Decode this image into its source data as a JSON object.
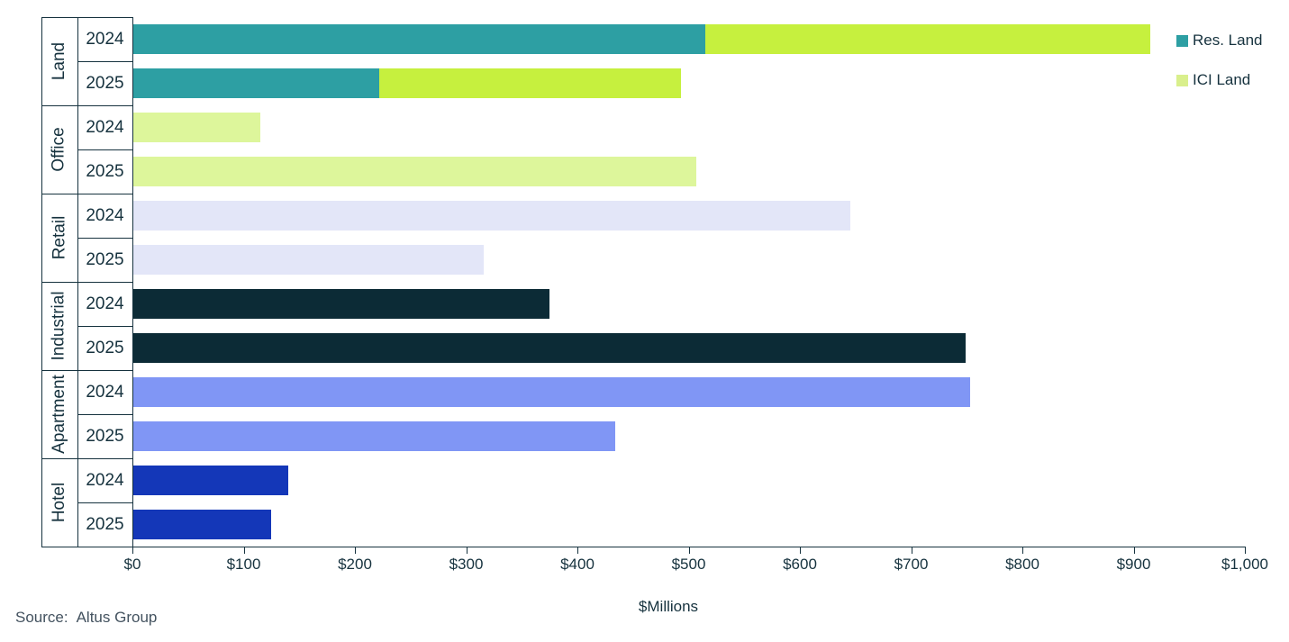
{
  "chart_data": {
    "type": "bar",
    "orientation": "horizontal",
    "title": "",
    "xlabel": "$Millions",
    "ylabel": "",
    "xlim": [
      0,
      1000
    ],
    "grid": false,
    "x_tick_values": [
      0,
      100,
      200,
      300,
      400,
      500,
      600,
      700,
      800,
      900,
      1000
    ],
    "x_ticks": [
      "$0",
      "$100",
      "$200",
      "$300",
      "$400",
      "$500",
      "$600",
      "$700",
      "$800",
      "$900",
      "$1,000"
    ],
    "legend_position": "top-right",
    "legend": [
      {
        "label": "Res. Land",
        "color": "#2D9FA3"
      },
      {
        "label": "ICI Land",
        "color": "#D9EF8C"
      }
    ],
    "groups": [
      "Land",
      "Office",
      "Retail",
      "Industrial",
      "Apartment",
      "Hotel"
    ],
    "rows": [
      {
        "group": "Land",
        "year": "2024",
        "total": 915,
        "segments": [
          {
            "name": "Res. Land",
            "value": 515,
            "color": "#2D9FA3"
          },
          {
            "name": "ICI Land",
            "value": 400,
            "color": "#C6F03E"
          }
        ]
      },
      {
        "group": "Land",
        "year": "2025",
        "total": 493,
        "segments": [
          {
            "name": "Res. Land",
            "value": 222,
            "color": "#2D9FA3"
          },
          {
            "name": "ICI Land",
            "value": 271,
            "color": "#C6F03E"
          }
        ]
      },
      {
        "group": "Office",
        "year": "2024",
        "total": 115,
        "segments": [
          {
            "name": "Office",
            "value": 115,
            "color": "#DDF69B"
          }
        ]
      },
      {
        "group": "Office",
        "year": "2025",
        "total": 507,
        "segments": [
          {
            "name": "Office",
            "value": 507,
            "color": "#DDF69B"
          }
        ]
      },
      {
        "group": "Retail",
        "year": "2024",
        "total": 645,
        "segments": [
          {
            "name": "Retail",
            "value": 645,
            "color": "#E3E6F8"
          }
        ]
      },
      {
        "group": "Retail",
        "year": "2025",
        "total": 316,
        "segments": [
          {
            "name": "Retail",
            "value": 316,
            "color": "#E3E6F8"
          }
        ]
      },
      {
        "group": "Industrial",
        "year": "2024",
        "total": 375,
        "segments": [
          {
            "name": "Industrial",
            "value": 375,
            "color": "#0C2B36"
          }
        ]
      },
      {
        "group": "Industrial",
        "year": "2025",
        "total": 749,
        "segments": [
          {
            "name": "Industrial",
            "value": 749,
            "color": "#0C2B36"
          }
        ]
      },
      {
        "group": "Apartment",
        "year": "2024",
        "total": 753,
        "segments": [
          {
            "name": "Apartment",
            "value": 753,
            "color": "#8096F5"
          }
        ]
      },
      {
        "group": "Apartment",
        "year": "2025",
        "total": 434,
        "segments": [
          {
            "name": "Apartment",
            "value": 434,
            "color": "#8096F5"
          }
        ]
      },
      {
        "group": "Hotel",
        "year": "2024",
        "total": 140,
        "segments": [
          {
            "name": "Hotel",
            "value": 140,
            "color": "#1437B8"
          }
        ]
      },
      {
        "group": "Hotel",
        "year": "2025",
        "total": 125,
        "segments": [
          {
            "name": "Hotel",
            "value": 125,
            "color": "#1437B8"
          }
        ]
      }
    ]
  },
  "legend": {
    "items": [
      {
        "label": "Res. Land"
      },
      {
        "label": "ICI Land"
      }
    ]
  },
  "source": {
    "label": "Source:",
    "value": "Altus Group"
  },
  "colors": {
    "axis": "#16323E",
    "text": "#16323E",
    "source_text": "#43525F",
    "background": "#FFFFFF"
  }
}
